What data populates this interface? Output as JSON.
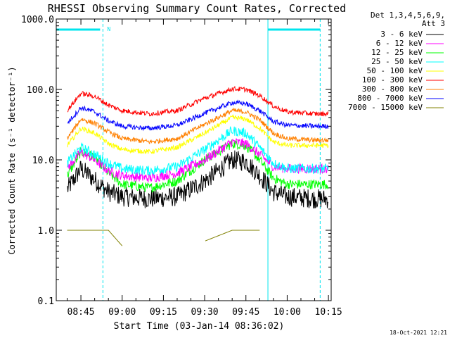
{
  "chart_data": {
    "type": "line",
    "title": "RHESSI Observing Summary Count Rates, Corrected",
    "xlabel": "Start Time (03-Jan-14 08:36:02)",
    "ylabel": "Corrected Count Rate (s⁻¹ detector⁻¹)",
    "y_scale": "log",
    "ylim": [
      0.1,
      1000.0
    ],
    "y_ticks": [
      "1000.0",
      "100.0",
      "10.0",
      "1.0",
      "0.1"
    ],
    "x_ticks": [
      "08:45",
      "09:00",
      "09:15",
      "09:30",
      "09:45",
      "10:00",
      "10:15"
    ],
    "xlim": [
      "08:36:02",
      "10:16"
    ],
    "legend_header": [
      "Det 1,3,4,5,6,9,",
      "Att 3"
    ],
    "legend_position": "right",
    "date_stamp": "18-Oct-2021 12:21",
    "night_marker": "N",
    "night_intervals": [
      [
        "08:36:02",
        "08:53"
      ],
      [
        "09:53",
        "10:12"
      ]
    ],
    "series": [
      {
        "name": "3 - 6 keV",
        "color": "#000000",
        "x": [
          "08:40",
          "08:45",
          "08:50",
          "08:55",
          "09:00",
          "09:10",
          "09:20",
          "09:30",
          "09:40",
          "09:45",
          "09:50",
          "09:55",
          "10:00",
          "10:10",
          "10:15"
        ],
        "values": [
          3.8,
          7.5,
          5.2,
          3.5,
          3.0,
          2.8,
          3.0,
          5.0,
          10.0,
          9.5,
          6.0,
          3.5,
          3.0,
          2.8,
          2.8
        ]
      },
      {
        "name": "6 - 12 keV",
        "color": "#ff00ff",
        "x": [
          "08:40",
          "08:45",
          "08:50",
          "08:55",
          "09:00",
          "09:10",
          "09:20",
          "09:30",
          "09:40",
          "09:45",
          "09:50",
          "09:55",
          "10:00",
          "10:10",
          "10:15"
        ],
        "values": [
          7.5,
          13.0,
          10.0,
          7.0,
          6.0,
          5.5,
          6.5,
          10.0,
          18.0,
          17.0,
          12.0,
          8.0,
          7.5,
          7.5,
          7.5
        ]
      },
      {
        "name": "12 - 25 keV",
        "color": "#00ff00",
        "x": [
          "08:40",
          "08:45",
          "08:50",
          "08:55",
          "09:00",
          "09:10",
          "09:20",
          "09:30",
          "09:40",
          "09:45",
          "09:50",
          "09:55",
          "10:00",
          "10:10",
          "10:15"
        ],
        "values": [
          6.0,
          13.0,
          11.0,
          6.5,
          4.5,
          4.0,
          5.0,
          10.0,
          17.0,
          16.0,
          10.0,
          5.5,
          4.5,
          4.5,
          4.5
        ]
      },
      {
        "name": "25 - 50 keV",
        "color": "#00ffff",
        "x": [
          "08:40",
          "08:45",
          "08:50",
          "08:55",
          "09:00",
          "09:10",
          "09:20",
          "09:30",
          "09:40",
          "09:45",
          "09:50",
          "09:55",
          "10:00",
          "10:10",
          "10:15"
        ],
        "values": [
          9.0,
          15.0,
          12.0,
          9.0,
          7.5,
          7.0,
          8.0,
          14.0,
          26.0,
          24.0,
          15.0,
          9.0,
          7.5,
          7.5,
          7.5
        ]
      },
      {
        "name": "50 - 100 keV",
        "color": "#ffff00",
        "x": [
          "08:40",
          "08:45",
          "08:50",
          "08:55",
          "09:00",
          "09:10",
          "09:20",
          "09:30",
          "09:40",
          "09:45",
          "09:50",
          "09:55",
          "10:00",
          "10:10",
          "10:15"
        ],
        "values": [
          16.0,
          28.0,
          24.0,
          17.0,
          14.0,
          13.0,
          15.0,
          24.0,
          40.0,
          38.0,
          28.0,
          18.0,
          16.0,
          16.0,
          16.0
        ]
      },
      {
        "name": "100 - 300 keV",
        "color": "#ff0000",
        "x": [
          "08:40",
          "08:45",
          "08:50",
          "08:55",
          "09:00",
          "09:10",
          "09:20",
          "09:30",
          "09:40",
          "09:45",
          "09:50",
          "09:55",
          "10:00",
          "10:10",
          "10:15"
        ],
        "values": [
          50.0,
          88.0,
          80.0,
          60.0,
          50.0,
          45.0,
          50.0,
          75.0,
          102.0,
          100.0,
          82.0,
          58.0,
          48.0,
          45.0,
          45.0
        ]
      },
      {
        "name": "300 - 800 keV",
        "color": "#ff8000",
        "x": [
          "08:40",
          "08:45",
          "08:50",
          "08:55",
          "09:00",
          "09:10",
          "09:20",
          "09:30",
          "09:40",
          "09:45",
          "09:50",
          "09:55",
          "10:00",
          "10:10",
          "10:15"
        ],
        "values": [
          20.0,
          38.0,
          33.0,
          25.0,
          20.0,
          18.0,
          20.0,
          32.0,
          50.0,
          48.0,
          37.0,
          24.0,
          20.0,
          19.0,
          19.0
        ]
      },
      {
        "name": "800 - 7000 keV",
        "color": "#0000ff",
        "x": [
          "08:40",
          "08:45",
          "08:50",
          "08:55",
          "09:00",
          "09:10",
          "09:20",
          "09:30",
          "09:40",
          "09:45",
          "09:50",
          "09:55",
          "10:00",
          "10:10",
          "10:15"
        ],
        "values": [
          33.0,
          55.0,
          48.0,
          36.0,
          30.0,
          28.0,
          31.0,
          46.0,
          65.0,
          63.0,
          50.0,
          35.0,
          31.0,
          30.0,
          30.0
        ]
      },
      {
        "name": "7000 - 15000 keV",
        "color": "#808000",
        "x": [
          "08:40",
          "08:45",
          "08:50",
          "08:55",
          "09:00",
          "09:10",
          "09:20",
          "09:30",
          "09:40",
          "09:45",
          "09:50",
          "09:55",
          "10:00",
          "10:10",
          "10:15"
        ],
        "values": [
          1.0,
          1.0,
          1.0,
          1.0,
          0.6,
          null,
          null,
          0.7,
          1.0,
          1.0,
          1.0,
          null,
          null,
          null,
          null
        ]
      }
    ]
  }
}
